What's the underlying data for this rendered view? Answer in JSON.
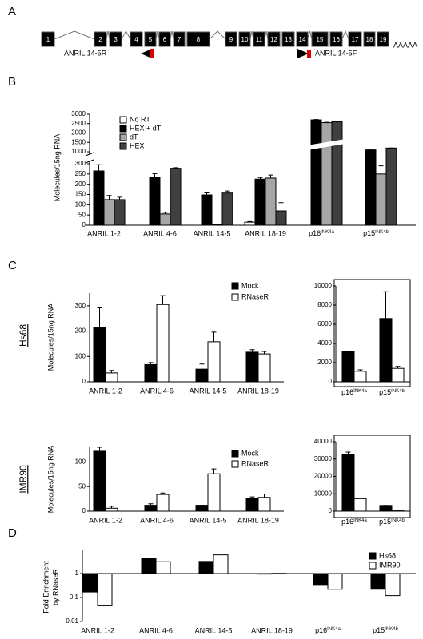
{
  "panel_a": {
    "label": "A",
    "exons": [
      "1",
      "2",
      "3",
      "4",
      "5",
      "6",
      "7",
      "8",
      "9",
      "10",
      "11",
      "12",
      "13",
      "14",
      "15",
      "16",
      "17",
      "18",
      "19"
    ],
    "poly_a": "AAAAA",
    "primers": [
      "ANRIL 14-5R",
      "ANRIL 14-5F"
    ]
  },
  "chart_data": [
    {
      "type": "bar",
      "label": "B",
      "ylabel": "Molecules/15ng RNA",
      "categories": [
        "ANRIL 1-2",
        "ANRIL 4-6",
        "ANRIL 14-5",
        "ANRIL 18-19",
        "p16INK4a",
        "p15INK4b"
      ],
      "series": [
        {
          "name": "No RT",
          "color": "#ffffff",
          "values": [
            0,
            0,
            0,
            15,
            0,
            0
          ],
          "errors": [
            0,
            0,
            0,
            3,
            0,
            0
          ]
        },
        {
          "name": "HEX + dT",
          "color": "#000000",
          "values": [
            265,
            232,
            148,
            225,
            2700,
            1100
          ],
          "errors": [
            30,
            20,
            10,
            8,
            20,
            0
          ]
        },
        {
          "name": "dT",
          "color": "#a6a6a6",
          "values": [
            125,
            55,
            3,
            230,
            2550,
            250
          ],
          "errors": [
            20,
            8,
            0,
            15,
            20,
            40
          ]
        },
        {
          "name": "HEX",
          "color": "#404040",
          "values": [
            125,
            278,
            157,
            70,
            2600,
            1200
          ],
          "errors": [
            12,
            3,
            10,
            40,
            10,
            0
          ]
        }
      ],
      "ylim": [
        0,
        3000
      ],
      "y_break": [
        300,
        1000
      ],
      "yticks": [
        0,
        50,
        100,
        150,
        200,
        250,
        300,
        1000,
        1500,
        2000,
        2500,
        3000
      ]
    },
    {
      "type": "bar",
      "label": "C",
      "row_label": "Hs68",
      "ylabel": "Molecules/15ng RNA",
      "categories": [
        "ANRIL 1-2",
        "ANRIL 4-6",
        "ANRIL 14-5",
        "ANRIL 18-19"
      ],
      "series": [
        {
          "name": "Mock",
          "color": "#000000",
          "values": [
            215,
            68,
            50,
            117
          ],
          "errors": [
            80,
            8,
            20,
            10
          ]
        },
        {
          "name": "RNaseR",
          "color": "#ffffff",
          "values": [
            35,
            305,
            158,
            110
          ],
          "errors": [
            10,
            35,
            38,
            10
          ]
        }
      ],
      "ylim": [
        0,
        350
      ],
      "yticks": [
        0,
        100,
        200,
        300
      ]
    },
    {
      "type": "bar",
      "categories": [
        "p16INK4a",
        "p15INK4b"
      ],
      "series": [
        {
          "color": "#000000",
          "values": [
            3200,
            6600
          ],
          "errors": [
            0,
            2800
          ]
        },
        {
          "color": "#ffffff",
          "values": [
            1100,
            1400
          ],
          "errors": [
            150,
            200
          ]
        }
      ],
      "ylim": [
        0,
        10000
      ],
      "yticks": [
        0,
        2000,
        4000,
        6000,
        8000,
        10000
      ]
    },
    {
      "type": "bar",
      "row_label": "IMR90",
      "ylabel": "Molecules/15ng RNA",
      "categories": [
        "ANRIL 1-2",
        "ANRIL 4-6",
        "ANRIL 14-5",
        "ANRIL 18-19"
      ],
      "series": [
        {
          "name": "Mock",
          "color": "#000000",
          "values": [
            122,
            12,
            12,
            26
          ],
          "errors": [
            8,
            3,
            0,
            3
          ]
        },
        {
          "name": "RNaseR",
          "color": "#ffffff",
          "values": [
            6,
            34,
            76,
            28
          ],
          "errors": [
            4,
            3,
            10,
            7
          ]
        }
      ],
      "ylim": [
        0,
        130
      ],
      "yticks": [
        0,
        50,
        100
      ]
    },
    {
      "type": "bar",
      "categories": [
        "p16INK4a",
        "p15INK4b"
      ],
      "series": [
        {
          "color": "#000000",
          "values": [
            32500,
            3300
          ],
          "errors": [
            1500,
            0
          ]
        },
        {
          "color": "#ffffff",
          "values": [
            7200,
            500
          ],
          "errors": [
            400,
            0
          ]
        }
      ],
      "ylim": [
        0,
        40000
      ],
      "yticks": [
        0,
        10000,
        20000,
        30000,
        40000
      ]
    },
    {
      "type": "bar",
      "label": "D",
      "ylabel": [
        "Fold Enrichment",
        "by RNaseR"
      ],
      "categories": [
        "ANRIL 1-2",
        "ANRIL 4-6",
        "ANRIL 14-5",
        "ANRIL 18-19",
        "p16INK4a",
        "p15INK4b"
      ],
      "series": [
        {
          "name": "Hs68",
          "color": "#000000",
          "values": [
            0.17,
            4.2,
            3.2,
            0.95,
            0.32,
            0.22
          ]
        },
        {
          "name": "IMR90",
          "color": "#ffffff",
          "values": [
            0.045,
            3.1,
            6,
            1.02,
            0.22,
            0.12
          ]
        }
      ],
      "log_scale": true,
      "baseline": 1,
      "ylim": [
        0.01,
        10
      ],
      "yticks": [
        0.01,
        0.1,
        1
      ]
    }
  ]
}
